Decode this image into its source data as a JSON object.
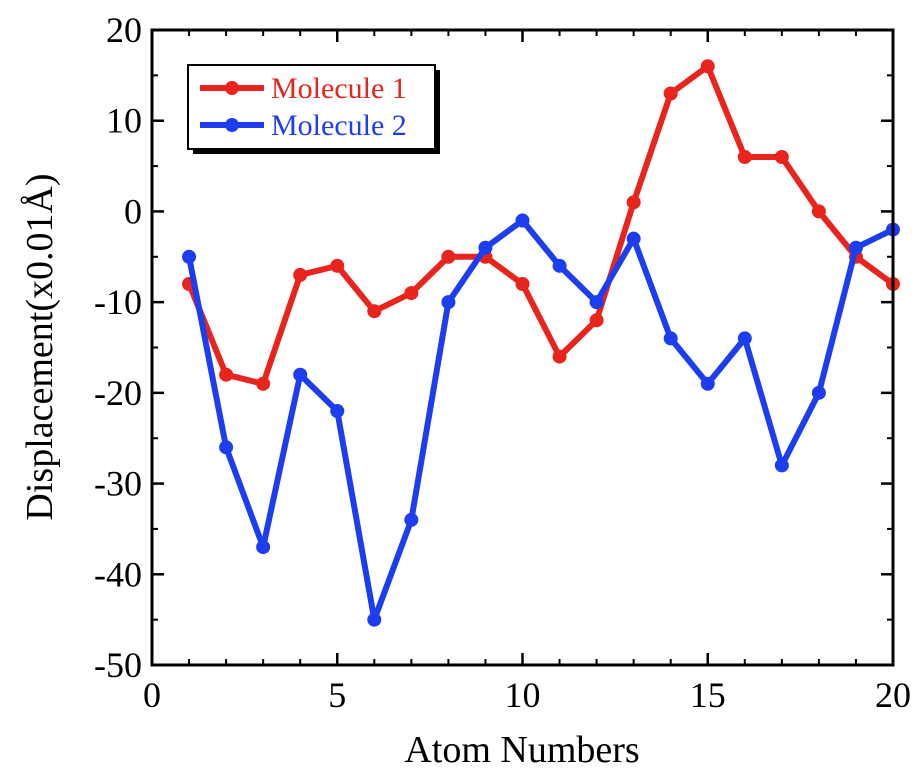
{
  "chart_data": {
    "type": "line",
    "xlabel": "Atom Numbers",
    "ylabel": "Displacement(x0.01Å)",
    "xlim": [
      0,
      20
    ],
    "ylim": [
      -50,
      20
    ],
    "x_ticks": [
      0,
      5,
      10,
      15,
      20
    ],
    "y_ticks": [
      -50,
      -40,
      -30,
      -20,
      -10,
      0,
      10,
      20
    ],
    "x_tick_labels": [
      "0",
      "5",
      "10",
      "15",
      "20"
    ],
    "y_tick_labels": [
      "-50",
      "-40",
      "-30",
      "-20",
      "-10",
      "0",
      "10",
      "20"
    ],
    "grid": false,
    "legend_position": "top-left",
    "x": [
      1,
      2,
      3,
      4,
      5,
      6,
      7,
      8,
      9,
      10,
      11,
      12,
      13,
      14,
      15,
      16,
      17,
      18,
      19,
      20
    ],
    "series": [
      {
        "name": "Molecule 1",
        "color": "#e8241c",
        "values": [
          -8,
          -18,
          -19,
          -7,
          -6,
          -11,
          -9,
          -5,
          -5,
          -8,
          -16,
          -12,
          1,
          13,
          16,
          6,
          6,
          0,
          -5,
          -8
        ]
      },
      {
        "name": "Molecule 2",
        "color": "#1c3ef0",
        "values": [
          -5,
          -26,
          -37,
          -18,
          -22,
          -45,
          -34,
          -10,
          -4,
          -1,
          -6,
          -10,
          -3,
          -14,
          -19,
          -14,
          -28,
          -20,
          -4,
          -2
        ]
      }
    ]
  }
}
